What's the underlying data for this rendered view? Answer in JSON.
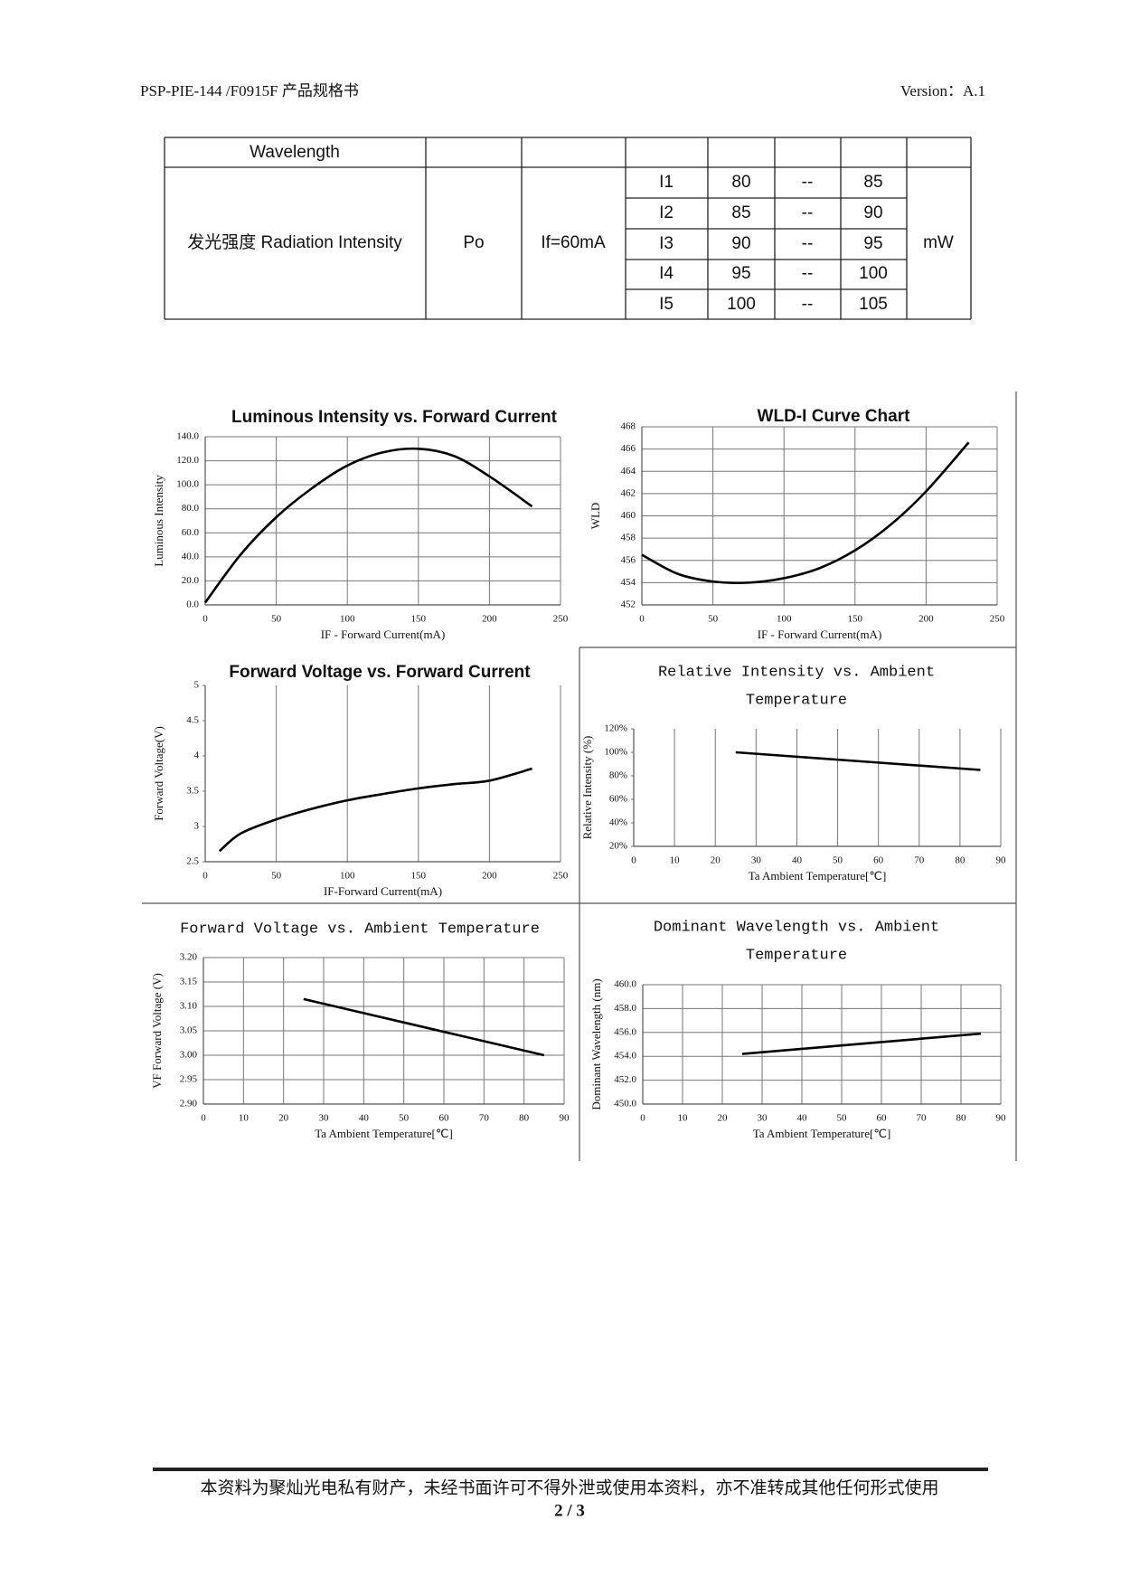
{
  "header": {
    "left": "PSP-PIE-144 /F0915F 产品规格书",
    "right": "Version：A.1"
  },
  "table": {
    "first_row": "Wavelength",
    "item": "发光强度  Radiation Intensity",
    "symbol": "Po",
    "condition": "If=60mA",
    "unit": "mW",
    "grades": [
      [
        "I1",
        80,
        "--",
        85
      ],
      [
        "I2",
        85,
        "--",
        90
      ],
      [
        "I3",
        90,
        "--",
        95
      ],
      [
        "I4",
        95,
        "--",
        100
      ],
      [
        "I5",
        100,
        "--",
        105
      ]
    ]
  },
  "chart_data": [
    {
      "type": "line",
      "title": [
        "Luminous Intensity vs. Forward Current"
      ],
      "xlabel": "IF - Forward Current(mA)",
      "ylabel": "Luminous Intensity",
      "x": [
        0,
        25,
        50,
        75,
        100,
        125,
        150,
        175,
        200,
        230
      ],
      "values": [
        2,
        42,
        73,
        97,
        116,
        127,
        130,
        124,
        107,
        82
      ],
      "color": "#000000",
      "xlim": [
        0,
        250
      ],
      "xticks": [
        0,
        50,
        100,
        150,
        200,
        250
      ],
      "ylim": [
        0,
        140
      ],
      "yticks": [
        {
          "value": 0,
          "label": "0.0"
        },
        {
          "value": 20,
          "label": "20.0"
        },
        {
          "value": 40,
          "label": "40.0"
        },
        {
          "value": 60,
          "label": "60.0"
        },
        {
          "value": 80,
          "label": "80.0"
        },
        {
          "value": 100,
          "label": "100.0"
        },
        {
          "value": 120,
          "label": "120.0"
        },
        {
          "value": 140,
          "label": "140.0"
        }
      ],
      "grid": "both"
    },
    {
      "type": "line",
      "title": [
        "WLD-I Curve Chart"
      ],
      "xlabel": "IF - Forward Current(mA)",
      "ylabel": "WLD",
      "x": [
        0,
        25,
        50,
        75,
        100,
        125,
        150,
        175,
        200,
        230
      ],
      "values": [
        456.5,
        454.8,
        454.1,
        454,
        454.4,
        455.3,
        456.9,
        459.2,
        462.2,
        466.6
      ],
      "color": "#000000",
      "xlim": [
        0,
        250
      ],
      "xticks": [
        0,
        50,
        100,
        150,
        200,
        250
      ],
      "ylim": [
        452,
        468
      ],
      "yticks": [
        452,
        454,
        456,
        458,
        460,
        462,
        464,
        466,
        468
      ],
      "grid": "both"
    },
    {
      "type": "line",
      "title": [
        "Forward Voltage vs. Forward Current"
      ],
      "xlabel": "IF-Forward Current(mA)",
      "ylabel": "Forward Voltage(V)",
      "x": [
        10,
        25,
        50,
        75,
        100,
        125,
        150,
        175,
        200,
        230
      ],
      "values": [
        2.65,
        2.9,
        3.1,
        3.25,
        3.37,
        3.46,
        3.54,
        3.6,
        3.65,
        3.82
      ],
      "color": "#000000",
      "xlim": [
        0,
        250
      ],
      "xticks": [
        0,
        50,
        100,
        150,
        200,
        250
      ],
      "ylim": [
        2.5,
        5
      ],
      "yticks": [
        2.5,
        3,
        3.5,
        4,
        4.5,
        5
      ],
      "grid": "x"
    },
    {
      "type": "line",
      "title": [
        "Relative Intensity vs. Ambient",
        "Temperature"
      ],
      "xlabel": "Ta Ambient Temperature[℃]",
      "ylabel": "Relative Intensity (%)",
      "x": [
        25,
        85
      ],
      "values": [
        100,
        85
      ],
      "color": "#000000",
      "xlim": [
        0,
        90
      ],
      "xticks": [
        0,
        10,
        20,
        30,
        40,
        50,
        60,
        70,
        80,
        90
      ],
      "ylim": [
        20,
        120
      ],
      "yticks": [
        {
          "value": 20,
          "label": "20%"
        },
        {
          "value": 40,
          "label": "40%"
        },
        {
          "value": 60,
          "label": "60%"
        },
        {
          "value": 80,
          "label": "80%"
        },
        {
          "value": 100,
          "label": "100%"
        },
        {
          "value": 120,
          "label": "120%"
        }
      ],
      "grid": "x"
    },
    {
      "type": "line",
      "title": [
        "Forward Voltage vs. Ambient Temperature"
      ],
      "xlabel": "Ta Ambient Temperature[℃]",
      "ylabel": "VF Forward Voltage (V)",
      "x": [
        25,
        85
      ],
      "values": [
        3.115,
        3.0
      ],
      "color": "#000000",
      "xlim": [
        0,
        90
      ],
      "xticks": [
        0,
        10,
        20,
        30,
        40,
        50,
        60,
        70,
        80,
        90
      ],
      "ylim": [
        2.9,
        3.2
      ],
      "yticks": [
        {
          "value": 2.9,
          "label": "2.90"
        },
        {
          "value": 2.95,
          "label": "2.95"
        },
        {
          "value": 3.0,
          "label": "3.00"
        },
        {
          "value": 3.05,
          "label": "3.05"
        },
        {
          "value": 3.1,
          "label": "3.10"
        },
        {
          "value": 3.15,
          "label": "3.15"
        },
        {
          "value": 3.2,
          "label": "3.20"
        }
      ],
      "grid": "both"
    },
    {
      "type": "line",
      "title": [
        "Dominant Wavelength vs. Ambient",
        "Temperature"
      ],
      "xlabel": "Ta Ambient Temperature[℃]",
      "ylabel": "Dominant Wavelength (nm)",
      "x": [
        25,
        85
      ],
      "values": [
        454.2,
        455.9
      ],
      "color": "#000000",
      "xlim": [
        0,
        90
      ],
      "xticks": [
        0,
        10,
        20,
        30,
        40,
        50,
        60,
        70,
        80,
        90
      ],
      "ylim": [
        450,
        460
      ],
      "yticks": [
        {
          "value": 450,
          "label": "450.0"
        },
        {
          "value": 452,
          "label": "452.0"
        },
        {
          "value": 454,
          "label": "454.0"
        },
        {
          "value": 456,
          "label": "456.0"
        },
        {
          "value": 458,
          "label": "458.0"
        },
        {
          "value": 460,
          "label": "460.0"
        }
      ],
      "grid": "both"
    }
  ],
  "footer": {
    "notice": "本资料为聚灿光电私有财产，未经书面许可不得外泄或使用本资料，亦不准转成其他任何形式使用",
    "page": "2 / 3"
  }
}
